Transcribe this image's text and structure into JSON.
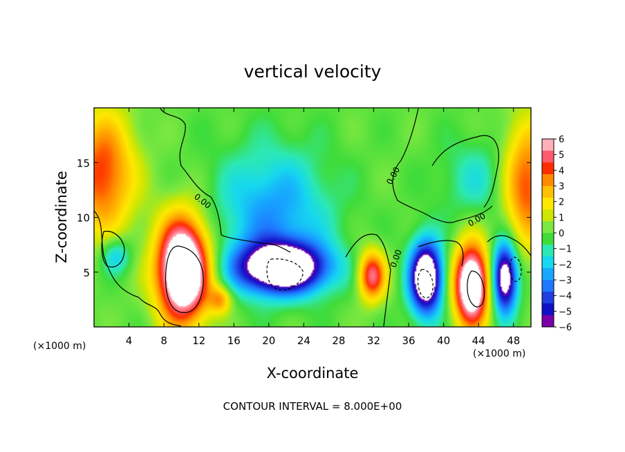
{
  "chart_data": {
    "type": "heatmap",
    "title": "vertical velocity",
    "xlabel": "X-coordinate",
    "ylabel": "Z-coordinate",
    "x_unit_label": "(×1000 m)",
    "x_ticks": [
      4,
      8,
      12,
      16,
      20,
      24,
      28,
      32,
      36,
      40,
      44,
      48
    ],
    "y_ticks": [
      5,
      10,
      15
    ],
    "xlim": [
      0,
      50
    ],
    "ylim": [
      0,
      20
    ],
    "colorbar": {
      "ticks": [
        6,
        5,
        4,
        3,
        2,
        1,
        0,
        -1,
        -2,
        -3,
        -4,
        -5,
        -6
      ],
      "tick_labels": [
        "6",
        "5",
        "4",
        "3",
        "2",
        "1",
        "0",
        "−1",
        "−2",
        "−3",
        "−4",
        "−5",
        "−6"
      ],
      "range": [
        -6,
        6
      ],
      "colors": [
        "#7a00a8",
        "#1010c8",
        "#1f3fe0",
        "#1e78ff",
        "#17a8ff",
        "#16d8ef",
        "#2ce8b4",
        "#3fdc3a",
        "#7de840",
        "#cfe600",
        "#ffe800",
        "#ffc000",
        "#ff8a00",
        "#ff2d00",
        "#ff5a6e",
        "#ffb0b8"
      ]
    },
    "contour_labels": [
      "0.00",
      "0.00",
      "0.00",
      "0.00"
    ],
    "note": "CONTOUR INTERVAL = 8.000E+00",
    "features": [
      {
        "x": 10.2,
        "z": 5.2,
        "sx": 2.1,
        "sz": 3.3,
        "value": 10
      },
      {
        "x": 21.5,
        "z": 5.4,
        "sx": 3.6,
        "sz": 1.6,
        "value": -9
      },
      {
        "x": 20.5,
        "z": 10.5,
        "sx": 4.5,
        "sz": 4.0,
        "value": -3
      },
      {
        "x": 38.0,
        "z": 4.5,
        "sx": 1.3,
        "sz": 2.3,
        "value": -9
      },
      {
        "x": 43.2,
        "z": 3.8,
        "sx": 1.4,
        "sz": 2.6,
        "value": 9
      },
      {
        "x": 47.0,
        "z": 4.5,
        "sx": 1.0,
        "sz": 2.2,
        "value": -8
      },
      {
        "x": 31.8,
        "z": 4.7,
        "sx": 1.1,
        "sz": 1.6,
        "value": 5.5
      },
      {
        "x": 1.0,
        "z": 14.0,
        "sx": 2.6,
        "sz": 4.0,
        "value": 4.5
      },
      {
        "x": 49.5,
        "z": 13.0,
        "sx": 2.0,
        "sz": 4.0,
        "value": 4.5
      },
      {
        "x": 2.5,
        "z": 6.5,
        "sx": 1.2,
        "sz": 1.2,
        "value": -2.5
      },
      {
        "x": 44.0,
        "z": 13.5,
        "sx": 3.0,
        "sz": 2.5,
        "value": -1.5
      },
      {
        "x": 14.5,
        "z": 2.5,
        "sx": 0.9,
        "sz": 0.9,
        "value": 3
      }
    ]
  }
}
